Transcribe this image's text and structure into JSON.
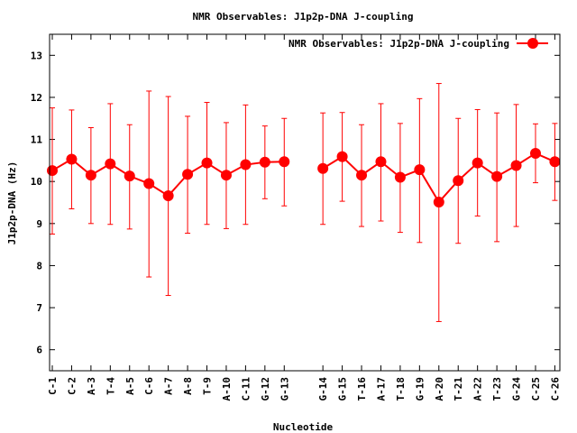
{
  "chart_data": {
    "type": "line",
    "title": "NMR Observables: J1p2p-DNA J-coupling",
    "xlabel": "Nucleotide",
    "ylabel": "J1p2p-DNA (Hz)",
    "ylim": [
      5.5,
      13.5
    ],
    "yticks": [
      6,
      7,
      8,
      9,
      10,
      11,
      12,
      13
    ],
    "grid": false,
    "legend_position": "top-right",
    "series_color": "#ff0000",
    "categories": [
      "C-1",
      "C-2",
      "A-3",
      "T-4",
      "A-5",
      "C-6",
      "A-7",
      "A-8",
      "T-9",
      "A-10",
      "C-11",
      "G-12",
      "G-13",
      "G-14",
      "G-15",
      "T-16",
      "A-17",
      "T-18",
      "G-19",
      "A-20",
      "T-21",
      "A-22",
      "T-23",
      "G-24",
      "C-25",
      "C-26"
    ],
    "gap_after_index": 12,
    "series": [
      {
        "name": "NMR Observables: J1p2p-DNA J-coupling",
        "values": [
          10.26,
          10.53,
          10.15,
          10.42,
          10.13,
          9.95,
          9.66,
          10.17,
          10.44,
          10.15,
          10.4,
          10.46,
          10.47,
          10.31,
          10.59,
          10.15,
          10.47,
          10.1,
          10.28,
          9.51,
          10.02,
          10.44,
          10.12,
          10.38,
          10.67,
          10.47
        ],
        "err_low": [
          8.75,
          9.35,
          9.0,
          8.98,
          8.87,
          7.73,
          7.29,
          8.77,
          8.98,
          8.88,
          8.98,
          9.59,
          9.42,
          8.98,
          9.53,
          8.93,
          9.06,
          8.79,
          8.55,
          6.67,
          8.53,
          9.18,
          8.57,
          8.93,
          9.97,
          9.55
        ],
        "err_high": [
          11.75,
          11.7,
          11.28,
          11.85,
          11.35,
          12.15,
          12.02,
          11.55,
          11.88,
          11.4,
          11.82,
          11.32,
          11.5,
          11.63,
          11.64,
          11.35,
          11.85,
          11.38,
          11.97,
          12.33,
          11.5,
          11.71,
          11.63,
          11.83,
          11.37,
          11.38
        ]
      }
    ]
  }
}
